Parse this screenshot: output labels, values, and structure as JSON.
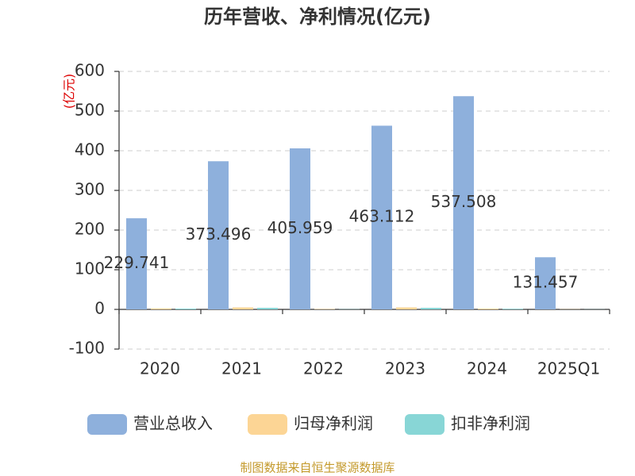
{
  "chart_data": {
    "type": "bar",
    "title": "历年营收、净利情况(亿元)",
    "y_label": "(亿元)",
    "categories": [
      "2020",
      "2021",
      "2022",
      "2023",
      "2024",
      "2025Q1"
    ],
    "series": [
      {
        "name": "营业总收入",
        "color": "#8eb0dc",
        "values": [
          229.741,
          373.496,
          405.959,
          463.112,
          537.508,
          131.457
        ]
      },
      {
        "name": "归母净利润",
        "color": "#fcd595",
        "values": [
          2.5,
          5,
          1,
          5,
          2,
          0.5
        ]
      },
      {
        "name": "扣非净利润",
        "color": "#88d6d6",
        "values": [
          2,
          4,
          0.5,
          4,
          1.5,
          0.3
        ]
      }
    ],
    "ylim": [
      -100,
      600
    ],
    "yticks": [
      -100,
      0,
      100,
      200,
      300,
      400,
      500,
      600
    ],
    "grid": true,
    "legend": "bottom",
    "source": "制图数据来自恒生聚源数据库"
  }
}
